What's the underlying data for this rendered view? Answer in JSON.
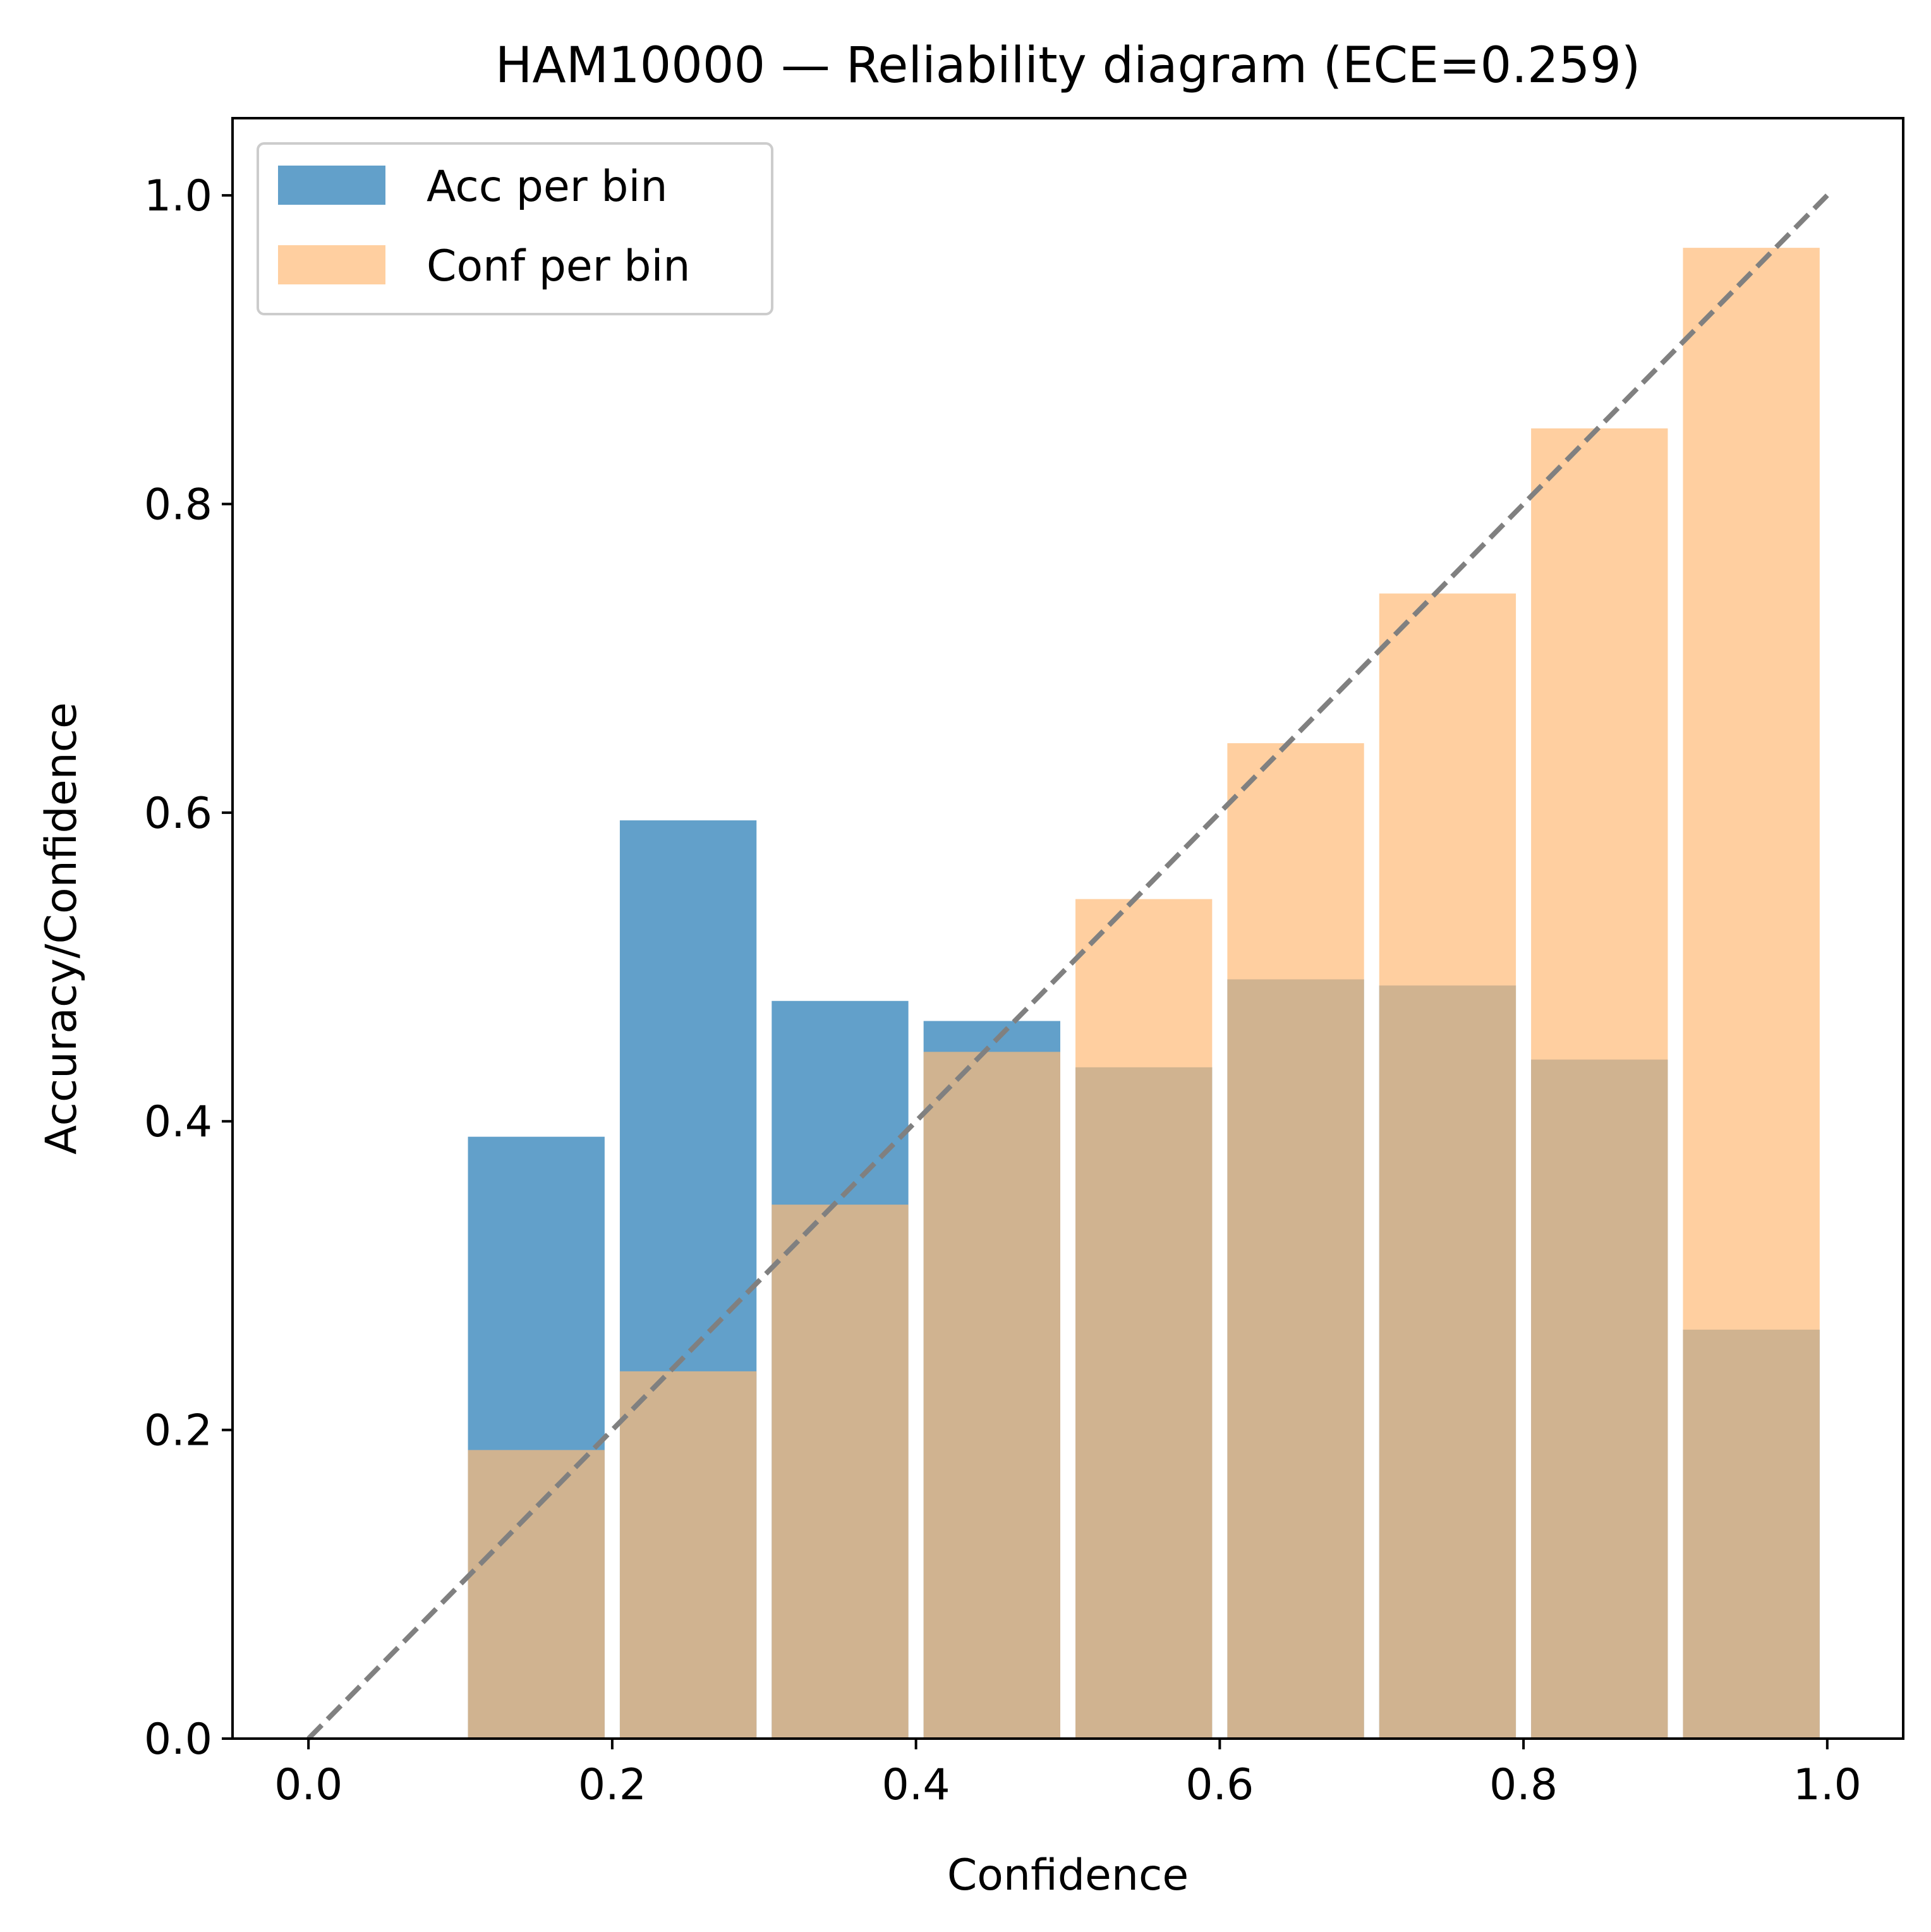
{
  "chart_data": {
    "type": "bar",
    "title": "HAM10000 — Reliability diagram (ECE=0.259)",
    "xlabel": "Confidence",
    "ylabel": "Accuracy/Confidence",
    "xlim": [
      -0.05,
      1.05
    ],
    "ylim": [
      0.0,
      1.05
    ],
    "xticks": [
      0.0,
      0.2,
      0.4,
      0.6,
      0.8,
      1.0
    ],
    "xtick_labels": [
      "0.0",
      "0.2",
      "0.4",
      "0.6",
      "0.8",
      "1.0"
    ],
    "yticks": [
      0.0,
      0.2,
      0.4,
      0.6,
      0.8,
      1.0
    ],
    "ytick_labels": [
      "0.0",
      "0.2",
      "0.4",
      "0.6",
      "0.8",
      "1.0"
    ],
    "grid": false,
    "legend_position": "upper-left",
    "bin_centers": [
      0.15,
      0.25,
      0.35,
      0.45,
      0.55,
      0.65,
      0.75,
      0.85,
      0.95
    ],
    "bin_width": 0.09,
    "series": [
      {
        "name": "Acc per bin",
        "color": "#1f77b4",
        "opacity": 0.7,
        "values": [
          0.39,
          0.595,
          0.478,
          0.465,
          0.435,
          0.492,
          0.488,
          0.44,
          0.265
        ]
      },
      {
        "name": "Conf per bin",
        "color": "#ffbb78",
        "opacity": 0.7,
        "values": [
          0.187,
          0.238,
          0.346,
          0.445,
          0.544,
          0.645,
          0.742,
          0.849,
          0.966
        ]
      }
    ],
    "reference_line": {
      "x": [
        0.0,
        1.0
      ],
      "y": [
        0.0,
        1.0
      ],
      "color": "#808080",
      "style": "dashed"
    }
  }
}
